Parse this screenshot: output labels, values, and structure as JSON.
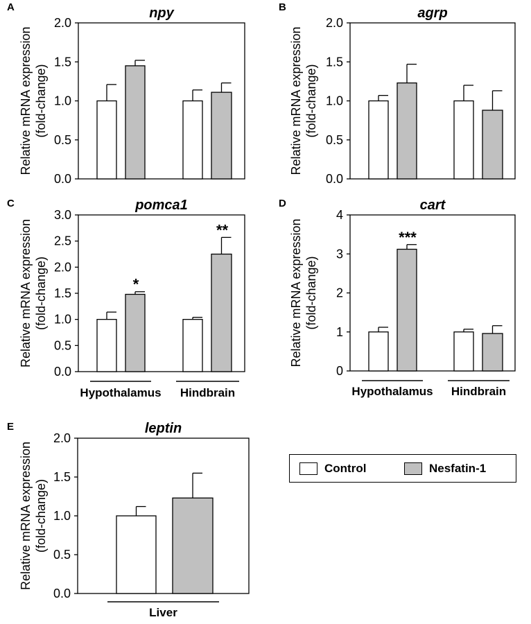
{
  "y_axis_label_line1": "Relative mRNA expression",
  "y_axis_label_line2": "(fold-change)",
  "series_names": [
    "Control",
    "Nesfatin-1"
  ],
  "colors": {
    "control": "#ffffff",
    "nesfatin": "#c0c0c0",
    "stroke": "#000000"
  },
  "legend": {
    "control_label": "Control",
    "nesfatin_label": "Nesfatin-1"
  },
  "chart_data": [
    {
      "panel": "A",
      "type": "bar",
      "title": "npy",
      "categories": [
        "Hypothalamus",
        "Hindbrain"
      ],
      "show_category_labels": false,
      "ylim": [
        0,
        2.0
      ],
      "yticks": [
        "0.0",
        "0.5",
        "1.0",
        "1.5",
        "2.0"
      ],
      "series": [
        {
          "name": "Control",
          "values": [
            1.0,
            1.0
          ],
          "errors": [
            0.21,
            0.14
          ]
        },
        {
          "name": "Nesfatin-1",
          "values": [
            1.45,
            1.11
          ],
          "errors": [
            0.07,
            0.12
          ]
        }
      ],
      "annotations": [
        "",
        "",
        "",
        ""
      ]
    },
    {
      "panel": "B",
      "type": "bar",
      "title": "agrp",
      "categories": [
        "Hypothalamus",
        "Hindbrain"
      ],
      "show_category_labels": false,
      "ylim": [
        0,
        2.0
      ],
      "yticks": [
        "0.0",
        "0.5",
        "1.0",
        "1.5",
        "2.0"
      ],
      "series": [
        {
          "name": "Control",
          "values": [
            1.0,
            1.0
          ],
          "errors": [
            0.07,
            0.2
          ]
        },
        {
          "name": "Nesfatin-1",
          "values": [
            1.23,
            0.88
          ],
          "errors": [
            0.24,
            0.25
          ]
        }
      ],
      "annotations": [
        "",
        "",
        "",
        ""
      ]
    },
    {
      "panel": "C",
      "type": "bar",
      "title": "pomca1",
      "categories": [
        "Hypothalamus",
        "Hindbrain"
      ],
      "show_category_labels": true,
      "ylim": [
        0,
        3.0
      ],
      "yticks": [
        "0.0",
        "0.5",
        "1.0",
        "1.5",
        "2.0",
        "2.5",
        "3.0"
      ],
      "series": [
        {
          "name": "Control",
          "values": [
            1.0,
            1.0
          ],
          "errors": [
            0.14,
            0.04
          ]
        },
        {
          "name": "Nesfatin-1",
          "values": [
            1.48,
            2.25
          ],
          "errors": [
            0.05,
            0.32
          ]
        }
      ],
      "annotations": [
        "",
        "*",
        "",
        "**"
      ]
    },
    {
      "panel": "D",
      "type": "bar",
      "title": "cart",
      "categories": [
        "Hypothalamus",
        "Hindbrain"
      ],
      "show_category_labels": true,
      "ylim": [
        0,
        4
      ],
      "yticks": [
        "0",
        "1",
        "2",
        "3",
        "4"
      ],
      "series": [
        {
          "name": "Control",
          "values": [
            1.0,
            1.0
          ],
          "errors": [
            0.12,
            0.07
          ]
        },
        {
          "name": "Nesfatin-1",
          "values": [
            3.12,
            0.96
          ],
          "errors": [
            0.12,
            0.2
          ]
        }
      ],
      "annotations": [
        "",
        "***",
        "",
        ""
      ]
    },
    {
      "panel": "E",
      "type": "bar",
      "title": "leptin",
      "categories": [
        "Liver"
      ],
      "show_category_labels": true,
      "ylim": [
        0,
        2.0
      ],
      "yticks": [
        "0.0",
        "0.5",
        "1.0",
        "1.5",
        "2.0"
      ],
      "series": [
        {
          "name": "Control",
          "values": [
            1.0
          ],
          "errors": [
            0.12
          ]
        },
        {
          "name": "Nesfatin-1",
          "values": [
            1.23
          ],
          "errors": [
            0.32
          ]
        }
      ],
      "annotations": [
        "",
        ""
      ]
    }
  ]
}
